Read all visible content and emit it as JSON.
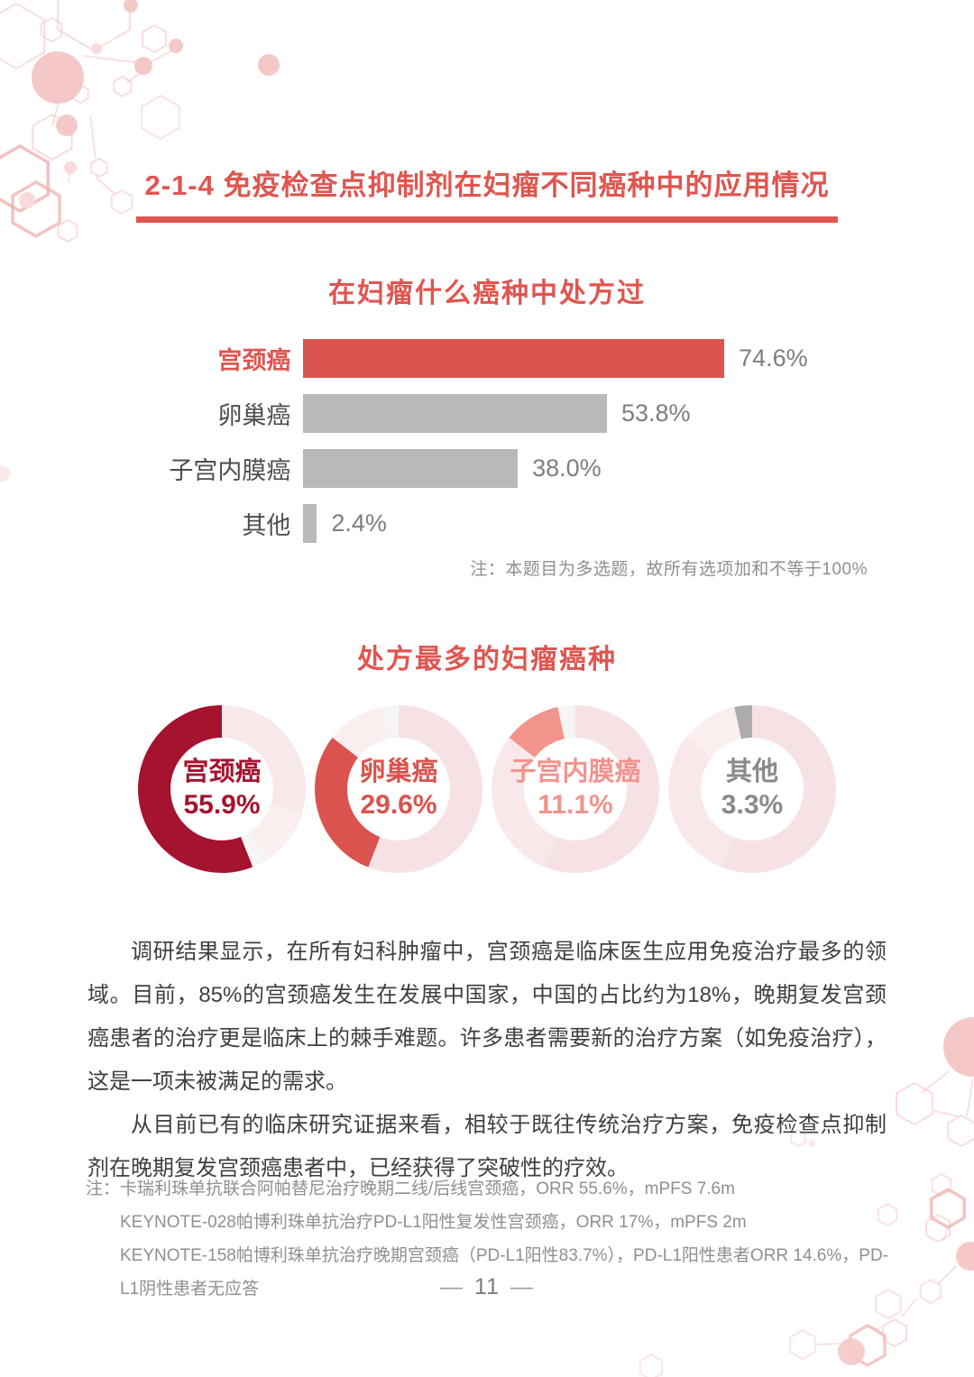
{
  "header": {
    "title": "2-1-4 免疫检查点抑制剂在妇瘤不同癌种中的应用情况",
    "accent_color": "#E0554F"
  },
  "chart_data": [
    {
      "type": "bar",
      "orientation": "horizontal",
      "title": "在妇瘤什么癌种中处方过",
      "categories": [
        "宫颈癌",
        "卵巢癌",
        "子宫内膜癌",
        "其他"
      ],
      "values": [
        74.6,
        53.8,
        38.0,
        2.4
      ],
      "value_labels": [
        "74.6%",
        "53.8%",
        "38.0%",
        "2.4%"
      ],
      "xlim": [
        0,
        100
      ],
      "grid": false,
      "highlight_index": 0,
      "bar_colors": [
        "#DC5450",
        "#B9B9B9",
        "#B9B9B9",
        "#B9B9B9"
      ],
      "note": "注：本题目为多选题，故所有选项加和不等于100%"
    },
    {
      "type": "pie",
      "subtype": "donut",
      "title": "处方最多的妇瘤癌种",
      "categories": [
        "宫颈癌",
        "卵巢癌",
        "子宫内膜癌",
        "其他"
      ],
      "values": [
        55.9,
        29.6,
        11.1,
        3.3
      ],
      "donuts": [
        {
          "label": "宫颈癌",
          "value_label": "55.9%",
          "text_color": "#A5132F",
          "ring": [
            {
              "pct": 29.6,
              "color": "#F8E8E9"
            },
            {
              "pct": 11.1,
              "color": "#FAEEEF"
            },
            {
              "pct": 3.3,
              "color": "#F7F4F4"
            },
            {
              "pct": 55.9,
              "color": "#A5132F"
            }
          ]
        },
        {
          "label": "卵巢癌",
          "value_label": "29.6%",
          "text_color": "#DB534E",
          "ring": [
            {
              "pct": 55.9,
              "color": "#F6E2E4"
            },
            {
              "pct": 29.6,
              "color": "#DB534E"
            },
            {
              "pct": 11.1,
              "color": "#FAEEEF"
            },
            {
              "pct": 3.3,
              "color": "#F7F4F4"
            }
          ]
        },
        {
          "label": "子宫内膜癌",
          "value_label": "11.1%",
          "text_color": "#F2948C",
          "ring": [
            {
              "pct": 55.9,
              "color": "#F6E2E4"
            },
            {
              "pct": 29.6,
              "color": "#F8E8E9"
            },
            {
              "pct": 11.1,
              "color": "#F2948C"
            },
            {
              "pct": 3.3,
              "color": "#F7F4F4"
            }
          ]
        },
        {
          "label": "其他",
          "value_label": "3.3%",
          "text_color": "#8A8A8A",
          "ring": [
            {
              "pct": 55.9,
              "color": "#F6E2E4"
            },
            {
              "pct": 29.6,
              "color": "#F8E8E9"
            },
            {
              "pct": 11.1,
              "color": "#FAEEEF"
            },
            {
              "pct": 3.3,
              "color": "#ACACAC"
            }
          ]
        }
      ]
    }
  ],
  "content": {
    "paragraphs": [
      "调研结果显示，在所有妇科肿瘤中，宫颈癌是临床医生应用免疫治疗最多的领域。目前，85%的宫颈癌发生在发展中国家，中国的占比约为18%，晚期复发宫颈癌患者的治疗更是临床上的棘手难题。许多患者需要新的治疗方案（如免疫治疗），这是一项未被满足的需求。",
      "从目前已有的临床研究证据来看，相较于既往传统治疗方案，免疫检查点抑制剂在晚期复发宫颈癌患者中，已经获得了突破性的疗效。"
    ]
  },
  "footnotes": [
    "注：卡瑞利珠单抗联合阿帕替尼治疗晚期二线/后线宫颈癌，ORR 55.6%，mPFS 7.6m",
    "KEYNOTE-028帕博利珠单抗治疗PD-L1阳性复发性宫颈癌，ORR 17%，mPFS 2m",
    "KEYNOTE-158帕博利珠单抗治疗晚期宫颈癌（PD-L1阳性83.7%），PD-L1阳性患者ORR 14.6%，PD-L1阴性患者无应答"
  ],
  "footer": {
    "page_number": "11",
    "dash": "—"
  }
}
